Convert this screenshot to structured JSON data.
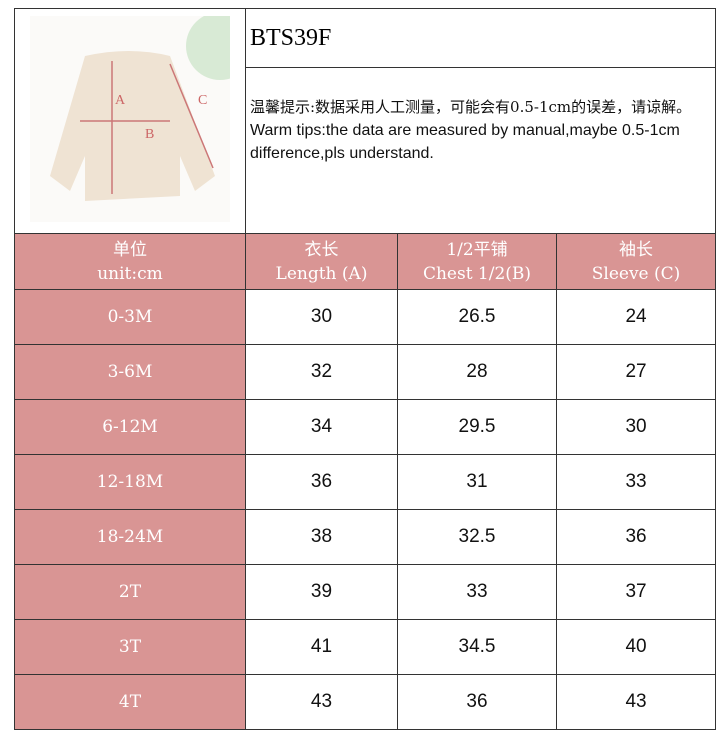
{
  "product_code": "BTS39F",
  "note_cn": "温馨提示:数据采用人工测量，可能会有0.5-1cm的误差，请谅解。",
  "note_en": "Warm tips:the data are measured by manual,maybe 0.5-1cm difference,pls understand.",
  "diagram_labels": {
    "a": "A",
    "b": "B",
    "c": "C"
  },
  "colors": {
    "header_bg": "#d99594",
    "header_text": "#ffffff"
  },
  "headers": [
    {
      "cn": "单位",
      "en": "unit:cm"
    },
    {
      "cn": "衣长",
      "en": "Length (A)"
    },
    {
      "cn": "1/2平铺",
      "en": "Chest 1/2(B)"
    },
    {
      "cn": "袖长",
      "en": "Sleeve (C)"
    }
  ],
  "rows": [
    {
      "size": "0-3M",
      "length": "30",
      "chest": "26.5",
      "sleeve": "24"
    },
    {
      "size": "3-6M",
      "length": "32",
      "chest": "28",
      "sleeve": "27"
    },
    {
      "size": "6-12M",
      "length": "34",
      "chest": "29.5",
      "sleeve": "30"
    },
    {
      "size": "12-18M",
      "length": "36",
      "chest": "31",
      "sleeve": "33"
    },
    {
      "size": "18-24M",
      "length": "38",
      "chest": "32.5",
      "sleeve": "36"
    },
    {
      "size": "2T",
      "length": "39",
      "chest": "33",
      "sleeve": "37"
    },
    {
      "size": "3T",
      "length": "41",
      "chest": "34.5",
      "sleeve": "40"
    },
    {
      "size": "4T",
      "length": "43",
      "chest": "36",
      "sleeve": "43"
    }
  ]
}
